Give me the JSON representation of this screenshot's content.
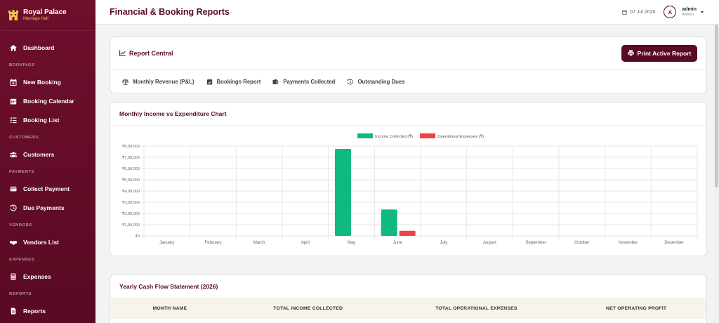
{
  "sidebar": {
    "brand_name": "Royal Palace",
    "brand_sub": "Marriage Hall",
    "dashboard": "Dashboard",
    "sections": {
      "bookings": "BOOKINGS",
      "customers": "CUSTOMERS",
      "payments": "PAYMENTS",
      "vendors": "VENDORS",
      "expenses": "EXPENSES",
      "reports": "REPORTS"
    },
    "items": {
      "new_booking": "New Booking",
      "booking_calendar": "Booking Calendar",
      "booking_list": "Booking List",
      "customers": "Customers",
      "collect_payment": "Collect Payment",
      "due_payments": "Due Payments",
      "vendors_list": "Vendors List",
      "expenses": "Expenses",
      "reports": "Reports"
    }
  },
  "header": {
    "title": "Financial & Booking Reports",
    "date": "07 Jul 2026",
    "avatar_initial": "A",
    "user_name": "admin",
    "user_role": "Admin"
  },
  "report_central": {
    "title": "Report Central",
    "print_label": "Print Active Report",
    "tabs": [
      "Monthly Revenue (P&L)",
      "Bookings Report",
      "Payments Collected",
      "Outstanding Dues"
    ]
  },
  "chart_card": {
    "title": "Monthly Income vs Expenditure Chart"
  },
  "chart_data": {
    "type": "bar",
    "categories": [
      "January",
      "February",
      "March",
      "April",
      "May",
      "June",
      "July",
      "August",
      "September",
      "October",
      "November",
      "December"
    ],
    "series": [
      {
        "name": "Income Collected (₹)",
        "color": "#10b981",
        "values": [
          0,
          0,
          0,
          0,
          775000,
          235000,
          0,
          0,
          0,
          0,
          0,
          0
        ]
      },
      {
        "name": "Operational Expenses (₹)",
        "color": "#ef4444",
        "values": [
          0,
          0,
          0,
          0,
          0,
          45000,
          0,
          0,
          0,
          0,
          0,
          0
        ]
      }
    ],
    "yticks": [
      "₹0",
      "₹1,00,000",
      "₹2,00,000",
      "₹3,00,000",
      "₹4,00,000",
      "₹5,00,000",
      "₹6,00,000",
      "₹7,00,000",
      "₹8,00,000"
    ],
    "ylim": [
      0,
      800000
    ],
    "grid": true,
    "legend": "top"
  },
  "cashflow": {
    "title": "Yearly Cash Flow Statement (2026)",
    "columns": [
      "MONTH NAME",
      "TOTAL INCOME COLLECTED",
      "TOTAL OPERATIONAL EXPENSES",
      "NET OPERATING PROFIT"
    ]
  },
  "colors": {
    "brand": "#5a0a23",
    "accent_gold": "#f2c14e",
    "income": "#10b981",
    "expense": "#ef4444"
  }
}
